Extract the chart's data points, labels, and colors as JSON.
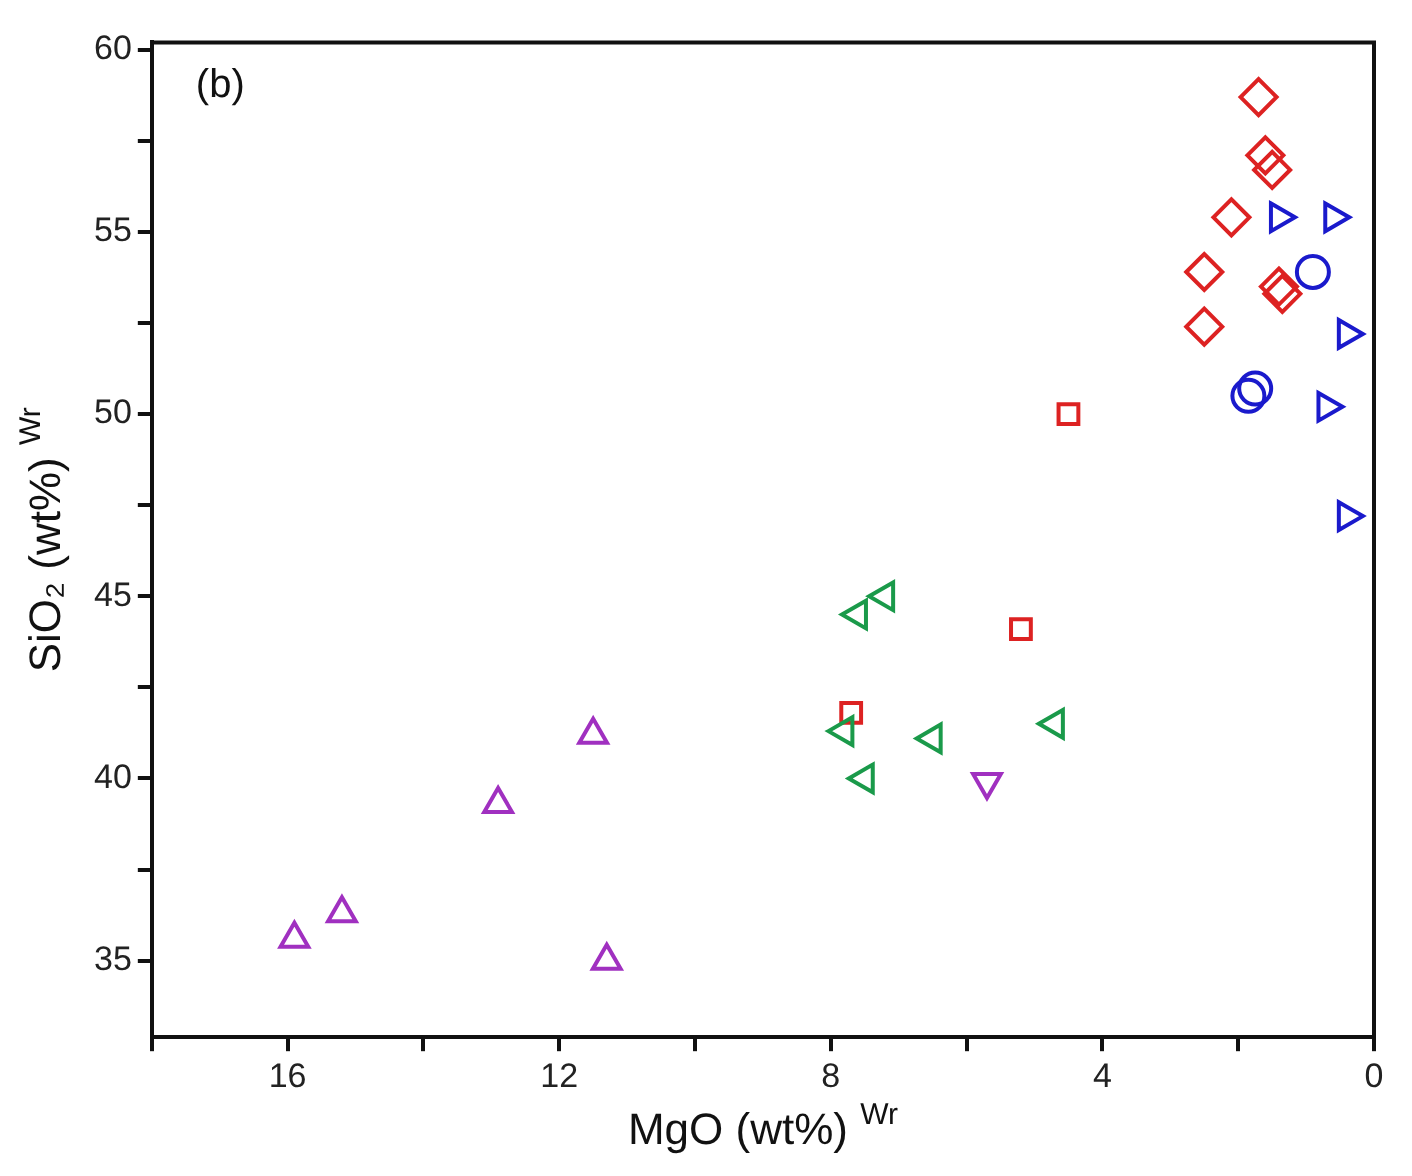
{
  "chart_data": {
    "type": "scatter",
    "xlabel": "MgO (wt%) $^{Wr}$",
    "ylabel": "SiO₂ (wt%) $^{Wr}$",
    "annotations": [
      "(b)"
    ],
    "xlim": [
      18,
      0
    ],
    "xticks": [
      {
        "value": 18,
        "label": null
      },
      16,
      {
        "value": 14,
        "label": null
      },
      12,
      {
        "value": 10,
        "label": null
      },
      8,
      {
        "value": 6,
        "label": null
      },
      4,
      {
        "value": 2,
        "label": null
      },
      0
    ],
    "ylim": [
      32.9,
      60.2
    ],
    "yticks": [
      35,
      {
        "value": 37.5,
        "label": null
      },
      40,
      {
        "value": 42.5,
        "label": null
      },
      45,
      {
        "value": 47.5,
        "label": null
      },
      50,
      {
        "value": 52.5,
        "label": null
      },
      55,
      {
        "value": 57.5,
        "label": null
      },
      60
    ],
    "grid": false,
    "legend": false,
    "series": [
      {
        "color": "#a030c0",
        "marker": "triangle",
        "x": [
          15.9,
          15.2,
          12.9,
          11.5,
          11.3
        ],
        "values": [
          35.6,
          36.3,
          39.3,
          41.2,
          35.0
        ]
      },
      {
        "color": "#a030c0",
        "marker": "triangle-down",
        "x": [
          5.7
        ],
        "values": [
          39.9
        ]
      },
      {
        "color": "#1a9a4a",
        "marker": "triangle-left",
        "x": [
          7.6,
          7.2,
          7.8,
          7.5,
          6.5,
          4.7
        ],
        "values": [
          44.5,
          45.0,
          41.3,
          40.0,
          41.1,
          41.5
        ]
      },
      {
        "color": "#dd2222",
        "marker": "square",
        "x": [
          5.2,
          7.7,
          4.5
        ],
        "values": [
          44.1,
          41.8,
          50.0
        ]
      },
      {
        "color": "#dd2222",
        "marker": "diamond",
        "x": [
          1.7,
          1.6,
          1.5,
          2.1,
          2.5,
          1.4,
          1.35,
          2.5
        ],
        "values": [
          58.7,
          57.1,
          56.7,
          55.4,
          53.9,
          53.5,
          53.3,
          52.4
        ]
      },
      {
        "color": "#1a1acc",
        "marker": "circle",
        "x": [
          0.9,
          1.75,
          1.85
        ],
        "values": [
          53.9,
          50.7,
          50.5
        ]
      },
      {
        "color": "#1a1acc",
        "marker": "triangle-right",
        "x": [
          1.4,
          0.6,
          0.4,
          0.7,
          0.4
        ],
        "values": [
          55.4,
          55.4,
          52.2,
          50.2,
          47.2
        ]
      }
    ]
  }
}
